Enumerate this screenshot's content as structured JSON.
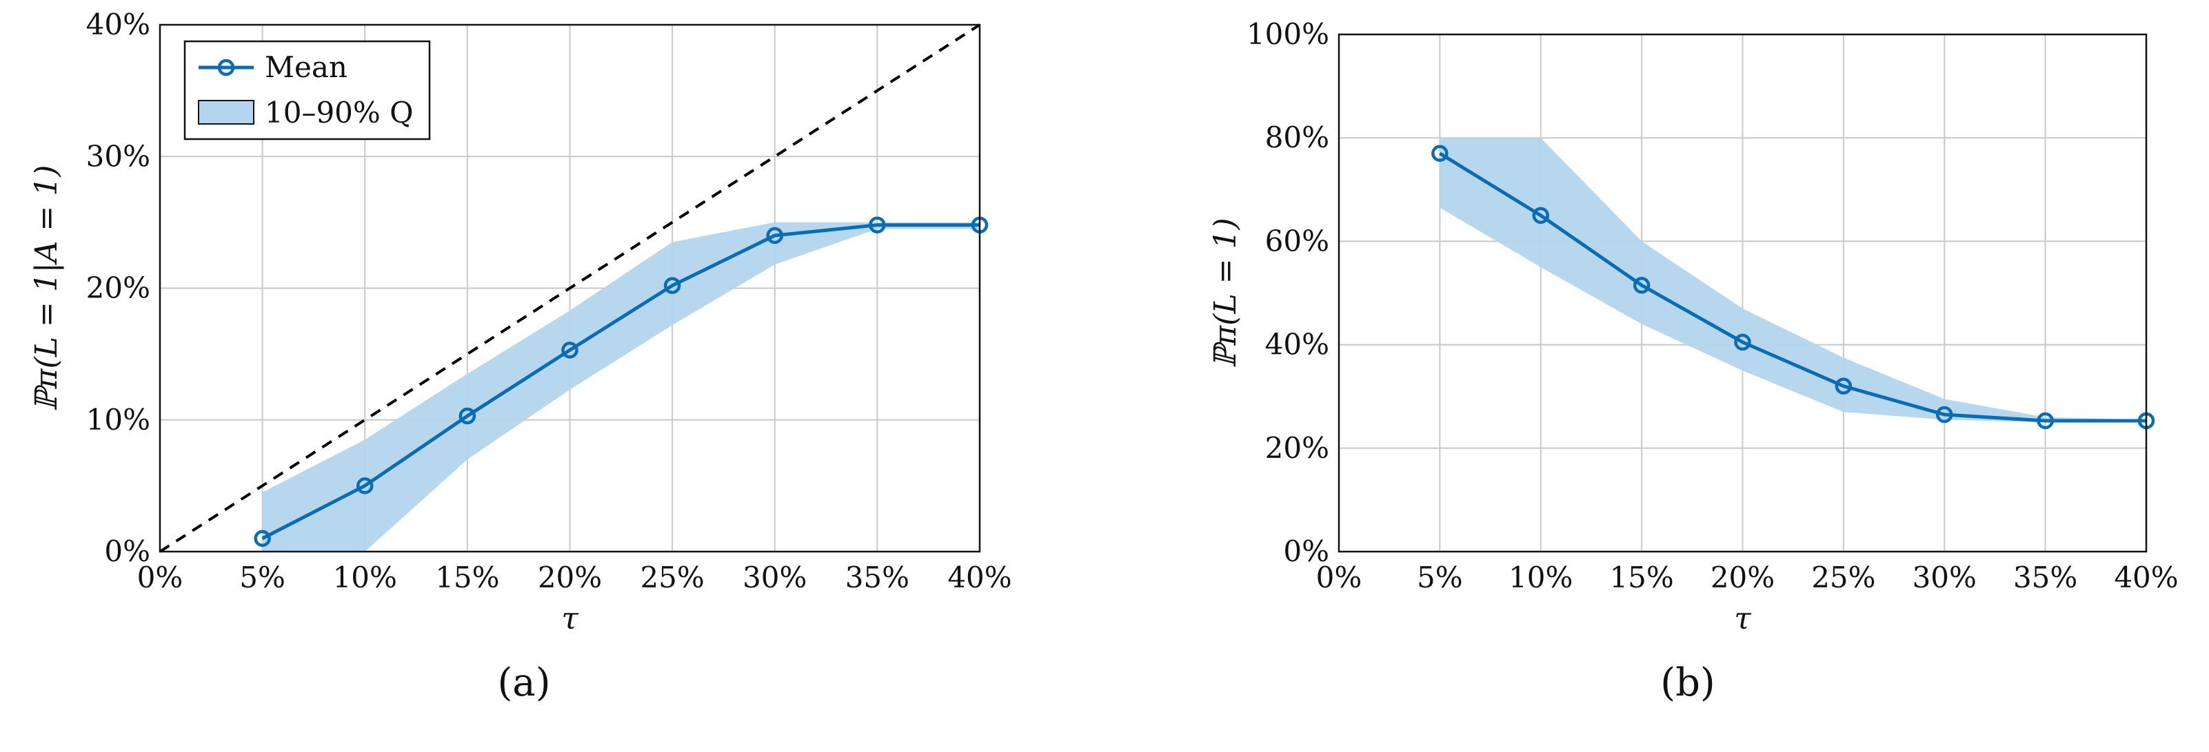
{
  "chart_data": [
    {
      "type": "line",
      "panel_label": "(a)",
      "xlabel": "τ",
      "ylabel": "ℙπ(L = 1|A = 1)",
      "xlim": [
        0,
        40
      ],
      "ylim": [
        0,
        40
      ],
      "x_ticks": [
        "0%",
        "5%",
        "10%",
        "15%",
        "20%",
        "25%",
        "30%",
        "35%",
        "40%"
      ],
      "y_ticks": [
        "0%",
        "10%",
        "20%",
        "30%",
        "40%"
      ],
      "grid": true,
      "legend_position": "top-left",
      "legend": {
        "mean_label": "Mean",
        "band_label": "10–90% Q"
      },
      "x": [
        5,
        10,
        15,
        20,
        25,
        30,
        35,
        40
      ],
      "series": [
        {
          "name": "Mean",
          "values": [
            1.0,
            5.0,
            10.3,
            15.3,
            20.2,
            24.0,
            24.8,
            24.8
          ]
        }
      ],
      "band": {
        "name": "10–90% Q",
        "lower": [
          0,
          0,
          7.0,
          12.3,
          17.2,
          21.8,
          24.5,
          24.5
        ],
        "upper": [
          4.5,
          8.5,
          13.5,
          18.3,
          23.5,
          25.0,
          25.0,
          25.0
        ]
      },
      "reference_line": {
        "x": [
          0,
          40
        ],
        "y": [
          0,
          40
        ],
        "style": "dashed"
      },
      "colors": {
        "line": "#0a6db3",
        "band": "#b3d5ee",
        "reference": "#000000"
      }
    },
    {
      "type": "line",
      "panel_label": "(b)",
      "xlabel": "τ",
      "ylabel": "ℙπ(L = 1)",
      "xlim": [
        0,
        40
      ],
      "ylim": [
        0,
        100
      ],
      "x_ticks": [
        "0%",
        "5%",
        "10%",
        "15%",
        "20%",
        "25%",
        "30%",
        "35%",
        "40%"
      ],
      "y_ticks": [
        "0%",
        "20%",
        "40%",
        "60%",
        "80%",
        "100%"
      ],
      "grid": true,
      "x": [
        5,
        10,
        15,
        20,
        25,
        30,
        35,
        40
      ],
      "series": [
        {
          "name": "Mean",
          "values": [
            77.0,
            65.0,
            51.5,
            40.5,
            32.0,
            26.5,
            25.3,
            25.3
          ]
        }
      ],
      "band": {
        "name": "10–90% Q",
        "lower": [
          66.5,
          55.0,
          44.0,
          35.0,
          27.0,
          25.5,
          25.0,
          25.0
        ],
        "upper": [
          80.0,
          80.0,
          60.0,
          47.0,
          37.5,
          29.5,
          26.0,
          25.5
        ]
      },
      "colors": {
        "line": "#0a6db3",
        "band": "#b3d5ee"
      }
    }
  ]
}
